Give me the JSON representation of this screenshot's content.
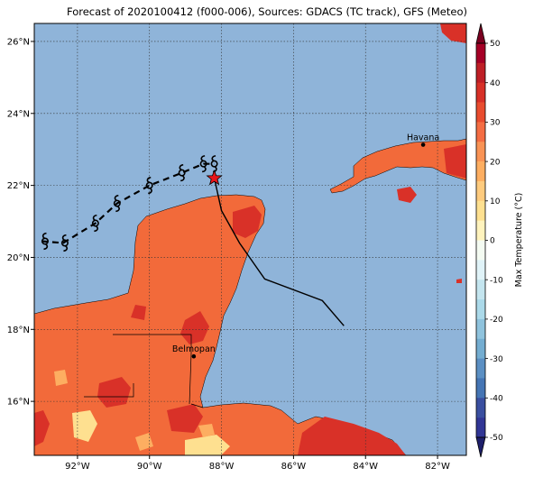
{
  "title": "Forecast of 2020100412 (f000-006), Sources: GDACS (TC track), GFS (Meteo)",
  "colors": {
    "sea": "#8fb4d9",
    "land_warm": "#f26a3a",
    "land_hot": "#d93128",
    "land_mild": "#fdae61",
    "land_cool": "#fee090",
    "track": "#000000",
    "marker": "#e8161b"
  },
  "map": {
    "lon_range": [
      -93.2,
      -81.2
    ],
    "lat_range": [
      14.5,
      26.5
    ],
    "lon_ticks": [
      {
        "value": -92,
        "label": "92°W"
      },
      {
        "value": -90,
        "label": "90°W"
      },
      {
        "value": -88,
        "label": "88°W"
      },
      {
        "value": -86,
        "label": "86°W"
      },
      {
        "value": -84,
        "label": "84°W"
      },
      {
        "value": -82,
        "label": "82°W"
      }
    ],
    "lat_ticks": [
      {
        "value": 16,
        "label": "16°N"
      },
      {
        "value": 18,
        "label": "18°N"
      },
      {
        "value": 20,
        "label": "20°N"
      },
      {
        "value": 22,
        "label": "22°N"
      },
      {
        "value": 24,
        "label": "24°N"
      },
      {
        "value": 26,
        "label": "26°N"
      }
    ],
    "grid": true
  },
  "cities": [
    {
      "name": "Havana",
      "lon": -82.4,
      "lat": 23.13
    },
    {
      "name": "Belmopan",
      "lon": -88.77,
      "lat": 17.25
    }
  ],
  "track": {
    "past": [
      {
        "lon": -93.0,
        "lat": 20.45
      },
      {
        "lon": -92.4,
        "lat": 20.4
      },
      {
        "lon": -91.5,
        "lat": 20.95
      },
      {
        "lon": -90.9,
        "lat": 21.5
      },
      {
        "lon": -90.0,
        "lat": 22.0
      },
      {
        "lon": -89.1,
        "lat": 22.35
      },
      {
        "lon": -88.5,
        "lat": 22.6
      },
      {
        "lon": -88.2,
        "lat": 22.6
      }
    ],
    "storm_symbols": [
      {
        "lon": -92.9,
        "lat": 20.45
      },
      {
        "lon": -92.35,
        "lat": 20.4
      },
      {
        "lon": -91.5,
        "lat": 20.95
      },
      {
        "lon": -90.9,
        "lat": 21.5
      },
      {
        "lon": -90.0,
        "lat": 22.0
      },
      {
        "lon": -89.1,
        "lat": 22.35
      },
      {
        "lon": -88.5,
        "lat": 22.6
      },
      {
        "lon": -88.2,
        "lat": 22.6
      }
    ],
    "current": {
      "lon": -88.2,
      "lat": 22.2
    },
    "forecast": [
      {
        "lon": -88.2,
        "lat": 22.2
      },
      {
        "lon": -88.0,
        "lat": 21.3
      },
      {
        "lon": -87.5,
        "lat": 20.4
      },
      {
        "lon": -86.8,
        "lat": 19.4
      },
      {
        "lon": -85.2,
        "lat": 18.8
      },
      {
        "lon": -84.6,
        "lat": 18.1
      }
    ]
  },
  "colorbar": {
    "label": "Max Temperature (°C)",
    "ticks": [
      50,
      40,
      30,
      20,
      10,
      0,
      -10,
      -20,
      -30,
      -40,
      -50
    ],
    "levels": [
      {
        "from": 45,
        "to": 50,
        "color": "#a50026"
      },
      {
        "from": 40,
        "to": 45,
        "color": "#be1f26"
      },
      {
        "from": 35,
        "to": 40,
        "color": "#d73027"
      },
      {
        "from": 30,
        "to": 35,
        "color": "#e84c2f"
      },
      {
        "from": 25,
        "to": 30,
        "color": "#f46d43"
      },
      {
        "from": 20,
        "to": 25,
        "color": "#f99355"
      },
      {
        "from": 15,
        "to": 20,
        "color": "#fdae61"
      },
      {
        "from": 10,
        "to": 15,
        "color": "#fecb7e"
      },
      {
        "from": 5,
        "to": 10,
        "color": "#fee090"
      },
      {
        "from": 0,
        "to": 5,
        "color": "#fff3bd"
      },
      {
        "from": -5,
        "to": 0,
        "color": "#f4fbf2"
      },
      {
        "from": -10,
        "to": -5,
        "color": "#e0f3f8"
      },
      {
        "from": -15,
        "to": -10,
        "color": "#c4e5ef"
      },
      {
        "from": -20,
        "to": -15,
        "color": "#abd9e9"
      },
      {
        "from": -25,
        "to": -20,
        "color": "#8fc3dd"
      },
      {
        "from": -30,
        "to": -25,
        "color": "#74add1"
      },
      {
        "from": -35,
        "to": -30,
        "color": "#5b8fc3"
      },
      {
        "from": -40,
        "to": -35,
        "color": "#4575b4"
      },
      {
        "from": -45,
        "to": -40,
        "color": "#3a4fa0"
      },
      {
        "from": -50,
        "to": -45,
        "color": "#313695"
      }
    ],
    "over_color": "#7a0020",
    "under_color": "#1e1f6b"
  }
}
